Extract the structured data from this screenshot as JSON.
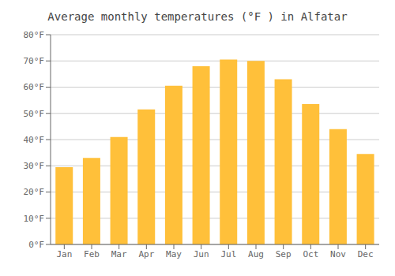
{
  "chart_data": {
    "type": "bar",
    "title": "Average monthly temperatures (°F ) in Alfatar",
    "categories": [
      "Jan",
      "Feb",
      "Mar",
      "Apr",
      "May",
      "Jun",
      "Jul",
      "Aug",
      "Sep",
      "Oct",
      "Nov",
      "Dec"
    ],
    "values": [
      29.5,
      33.0,
      41.0,
      51.5,
      60.5,
      68.0,
      70.5,
      70.0,
      63.0,
      53.5,
      44.0,
      34.5
    ],
    "color": "#FFC03A",
    "ylim": [
      0,
      80
    ],
    "yticks": [
      {
        "value": 0,
        "label": "0°F"
      },
      {
        "value": 10,
        "label": "10°F"
      },
      {
        "value": 20,
        "label": "20°F"
      },
      {
        "value": 30,
        "label": "30°F"
      },
      {
        "value": 40,
        "label": "40°F"
      },
      {
        "value": 50,
        "label": "50°F"
      },
      {
        "value": 60,
        "label": "60°F"
      },
      {
        "value": 70,
        "label": "70°F"
      },
      {
        "value": 80,
        "label": "80°F"
      }
    ],
    "grid": true
  }
}
